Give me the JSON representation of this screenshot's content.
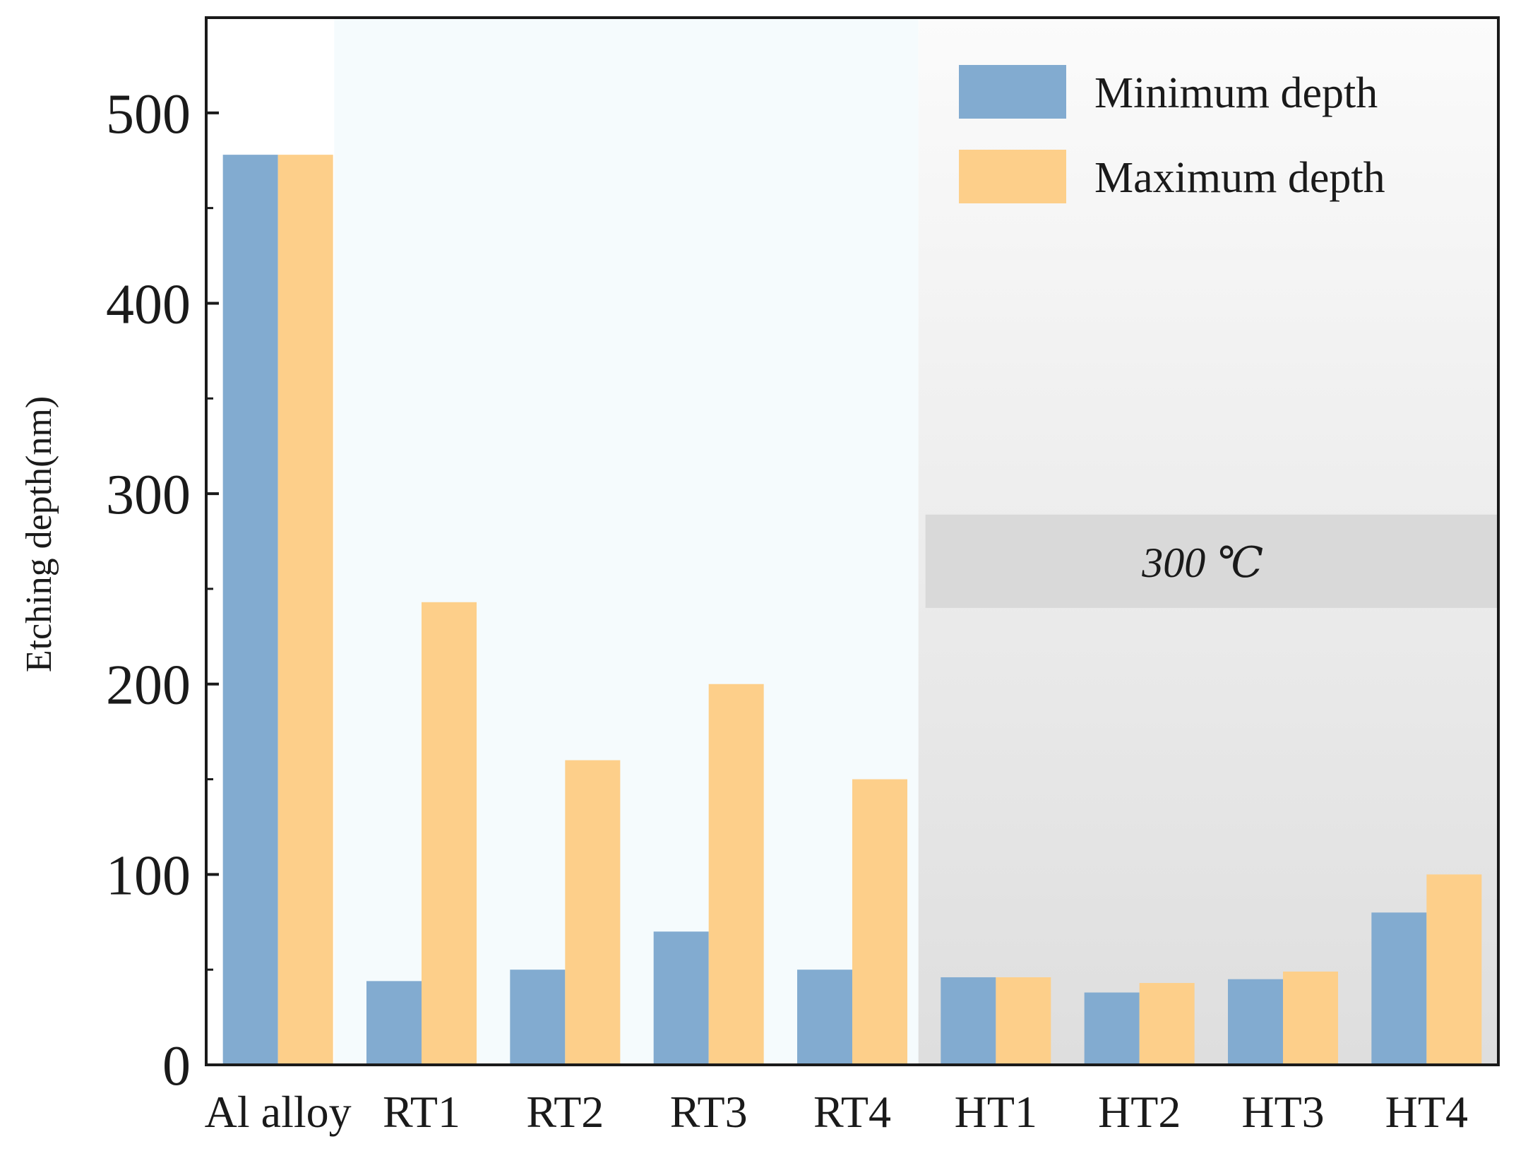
{
  "chart_data": {
    "type": "bar",
    "categories": [
      "Al alloy",
      "RT1",
      "RT2",
      "RT3",
      "RT4",
      "HT1",
      "HT2",
      "HT3",
      "HT4"
    ],
    "series": [
      {
        "name": "Minimum depth",
        "values": [
          478,
          44,
          50,
          70,
          50,
          46,
          38,
          45,
          80
        ]
      },
      {
        "name": "Maximum depth",
        "values": [
          478,
          243,
          160,
          200,
          150,
          46,
          43,
          49,
          100
        ]
      }
    ],
    "title": "",
    "xlabel": "",
    "ylabel": "Etching depth(nm)",
    "ylim": [
      0,
      550
    ],
    "yticks": [
      0,
      100,
      200,
      300,
      400,
      500
    ],
    "grid": false,
    "legend_position": "top-right",
    "annotation": {
      "text": "300 ℃",
      "y_range": [
        240,
        289
      ]
    },
    "colors": {
      "minimum": "#82abd0",
      "maximum": "#fdcf8a",
      "rt_region": "#f5fbfd",
      "ht_region_top": "#fbfbfb",
      "ht_region_bottom": "#dedede",
      "annotation_band": "#d9d9d9"
    }
  }
}
